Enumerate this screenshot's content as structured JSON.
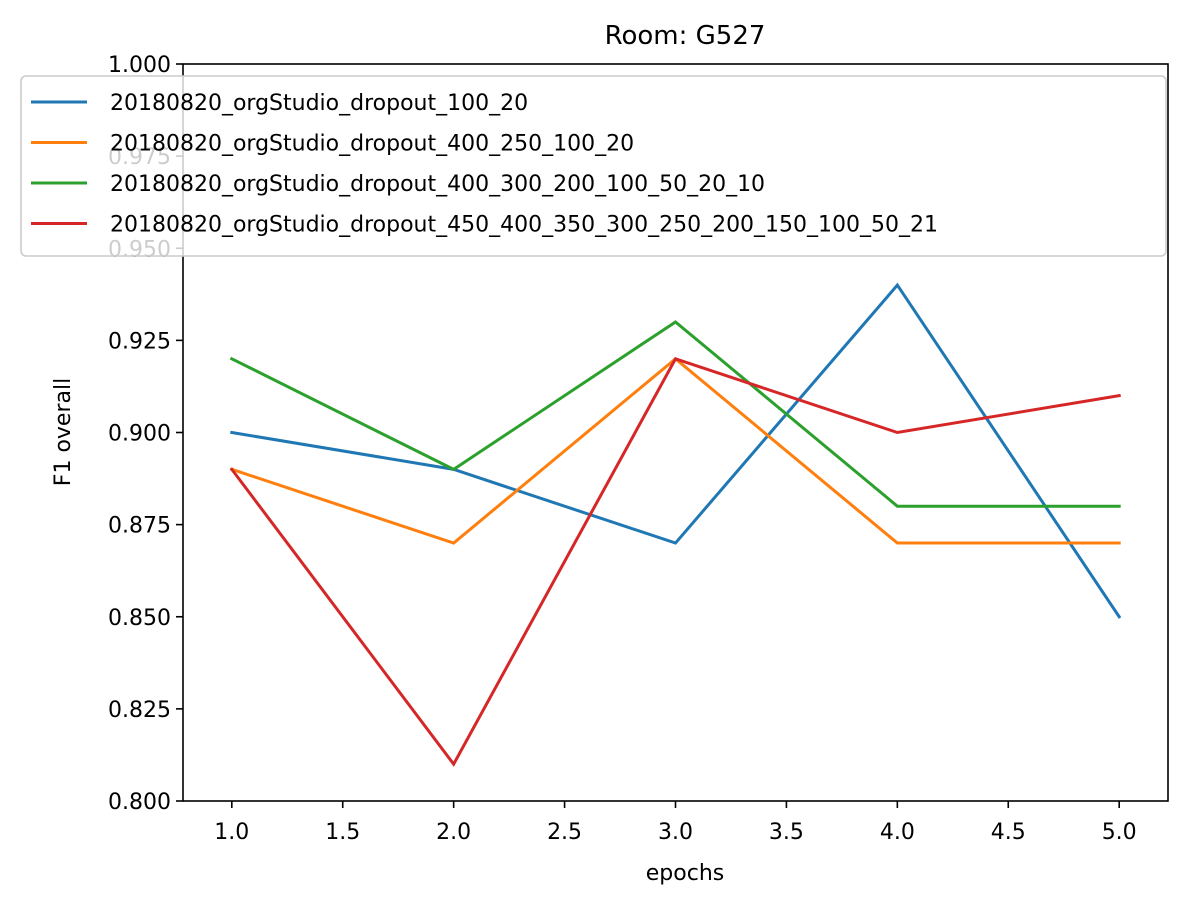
{
  "chart_data": {
    "type": "line",
    "title": "Room: G527",
    "xlabel": "epochs",
    "ylabel": "F1 overall",
    "xlim": [
      0.78,
      5.22
    ],
    "ylim": [
      0.8,
      1.0
    ],
    "xticks": [
      1.0,
      1.5,
      2.0,
      2.5,
      3.0,
      3.5,
      4.0,
      4.5,
      5.0
    ],
    "xtick_labels": [
      "1.0",
      "1.5",
      "2.0",
      "2.5",
      "3.0",
      "3.5",
      "4.0",
      "4.5",
      "5.0"
    ],
    "yticks": [
      0.8,
      0.825,
      0.85,
      0.875,
      0.9,
      0.925,
      0.95,
      0.975,
      1.0
    ],
    "ytick_labels": [
      "0.800",
      "0.825",
      "0.850",
      "0.875",
      "0.900",
      "0.925",
      "0.950",
      "0.975",
      "1.000"
    ],
    "grid": false,
    "legend_position": "top",
    "x": [
      1,
      2,
      3,
      4,
      5
    ],
    "series": [
      {
        "name": "20180820_orgStudio_dropout_100_20",
        "color": "#1f77b4",
        "values": [
          0.9,
          0.89,
          0.87,
          0.94,
          0.85
        ]
      },
      {
        "name": "20180820_orgStudio_dropout_400_250_100_20",
        "color": "#ff7f0e",
        "values": [
          0.89,
          0.87,
          0.92,
          0.87,
          0.87
        ]
      },
      {
        "name": "20180820_orgStudio_dropout_400_300_200_100_50_20_10",
        "color": "#2ca02c",
        "values": [
          0.92,
          0.89,
          0.93,
          0.88,
          0.88
        ]
      },
      {
        "name": "20180820_orgStudio_dropout_450_400_350_300_250_200_150_100_50_21",
        "color": "#d62728",
        "values": [
          0.89,
          0.81,
          0.92,
          0.9,
          0.91
        ]
      }
    ]
  }
}
